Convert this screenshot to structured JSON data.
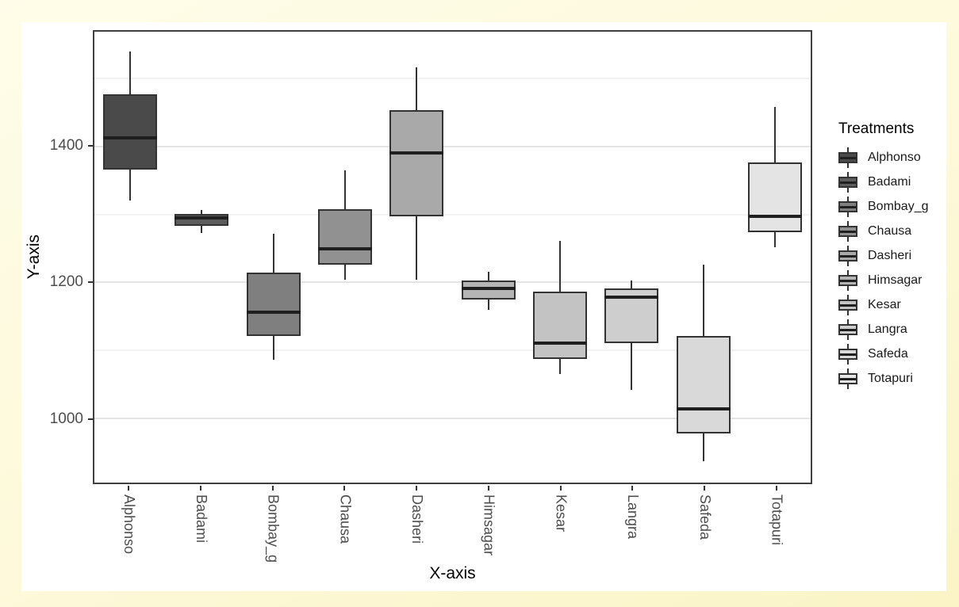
{
  "chart_data": {
    "type": "boxplot",
    "title": "",
    "xlabel": "X-axis",
    "ylabel": "Y-axis",
    "legend_title": "Treatments",
    "legend_position": "right",
    "grid": true,
    "ylim": [
      905,
      1569
    ],
    "y_ticks": [
      1000,
      1200,
      1400
    ],
    "y_minor_gridlines": [
      1100,
      1300,
      1500
    ],
    "categories": [
      "Alphonso",
      "Badami",
      "Bombay_g",
      "Chausa",
      "Dasheri",
      "Himsagar",
      "Kesar",
      "Langra",
      "Safeda",
      "Totapuri"
    ],
    "series": [
      {
        "name": "Alphonso",
        "fill": "#4a4a4a",
        "whisker_low": 1320,
        "q1": 1366,
        "median": 1413,
        "q3": 1477,
        "whisker_high": 1540
      },
      {
        "name": "Badami",
        "fill": "#5c5c5c",
        "whisker_low": 1273,
        "q1": 1283,
        "median": 1295,
        "q3": 1301,
        "whisker_high": 1307
      },
      {
        "name": "Bombay_g",
        "fill": "#7f7f7f",
        "whisker_low": 1086,
        "q1": 1121,
        "median": 1156,
        "q3": 1214,
        "whisker_high": 1272
      },
      {
        "name": "Chausa",
        "fill": "#919191",
        "whisker_low": 1204,
        "q1": 1226,
        "median": 1249,
        "q3": 1308,
        "whisker_high": 1365
      },
      {
        "name": "Dasheri",
        "fill": "#a9a9a9",
        "whisker_low": 1204,
        "q1": 1297,
        "median": 1390,
        "q3": 1453,
        "whisker_high": 1517
      },
      {
        "name": "Himsagar",
        "fill": "#b5b5b5",
        "whisker_low": 1159,
        "q1": 1174,
        "median": 1191,
        "q3": 1203,
        "whisker_high": 1215
      },
      {
        "name": "Kesar",
        "fill": "#c3c3c3",
        "whisker_low": 1065,
        "q1": 1087,
        "median": 1110,
        "q3": 1186,
        "whisker_high": 1261
      },
      {
        "name": "Langra",
        "fill": "#cecece",
        "whisker_low": 1041,
        "q1": 1110,
        "median": 1178,
        "q3": 1191,
        "whisker_high": 1202
      },
      {
        "name": "Safeda",
        "fill": "#d9d9d9",
        "whisker_low": 936,
        "q1": 977,
        "median": 1014,
        "q3": 1121,
        "whisker_high": 1226
      },
      {
        "name": "Totapuri",
        "fill": "#e4e4e4",
        "whisker_low": 1251,
        "q1": 1274,
        "median": 1297,
        "q3": 1377,
        "whisker_high": 1458
      }
    ],
    "colors": {
      "outer_background": "#fdf8d8",
      "panel_background": "#ffffff",
      "panel_border": "#404040",
      "box_border": "#333333",
      "median_line": "#1f1f1f",
      "gridline_major": "#e4e4e4",
      "gridline_minor": "#f2f2f2",
      "tick_label": "#4d4d4d",
      "axis_title": "#000000"
    }
  }
}
